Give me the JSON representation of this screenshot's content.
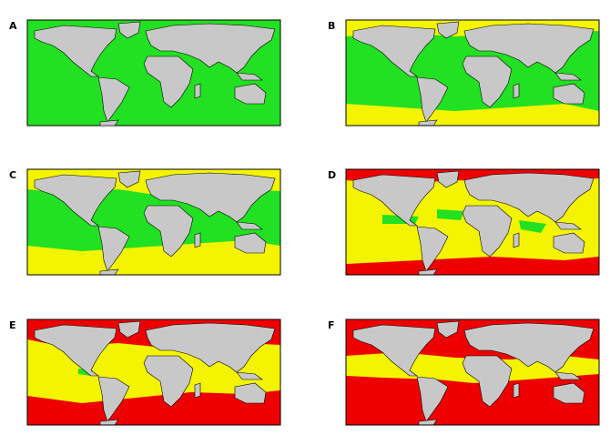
{
  "panels": [
    {
      "label": "A"
    },
    {
      "label": "B"
    },
    {
      "label": "C"
    },
    {
      "label": "D"
    },
    {
      "label": "E"
    },
    {
      "label": "F"
    }
  ]
}
